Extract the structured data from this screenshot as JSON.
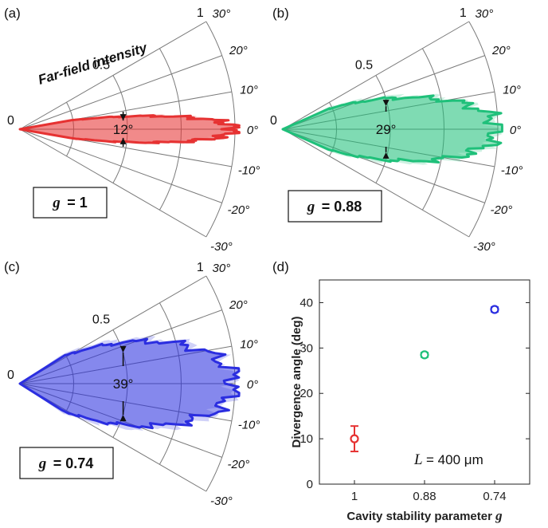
{
  "panels": [
    {
      "label": "(a)",
      "title": "Far-field intensity",
      "color": "#e63232",
      "g_symbol": "g",
      "g_value": "= 1",
      "angle_label": "12°",
      "divergence_deg": 12,
      "r_ticks": [
        "0",
        "0.5",
        "1"
      ],
      "angle_ticks": [
        "30°",
        "20°",
        "10°",
        "0°",
        "-10°",
        "-20°",
        "-30°"
      ]
    },
    {
      "label": "(b)",
      "title": "",
      "color": "#1fc07a",
      "g_symbol": "g",
      "g_value": "= 0.88",
      "angle_label": "29°",
      "divergence_deg": 29,
      "r_ticks": [
        "0",
        "0.5",
        "1"
      ],
      "angle_ticks": [
        "30°",
        "20°",
        "10°",
        "0°",
        "-10°",
        "-20°",
        "-30°"
      ]
    },
    {
      "label": "(c)",
      "title": "",
      "color": "#2b2ee0",
      "g_symbol": "g",
      "g_value": "= 0.74",
      "angle_label": "39°",
      "divergence_deg": 39,
      "r_ticks": [
        "0",
        "0.5",
        "1"
      ],
      "angle_ticks": [
        "30°",
        "20°",
        "10°",
        "0°",
        "-10°",
        "-20°",
        "-30°"
      ]
    }
  ],
  "chart_data": {
    "type": "scatter",
    "panel_label": "(d)",
    "categories": [
      "1",
      "0.88",
      "0.74"
    ],
    "values": [
      10,
      28.5,
      38.5
    ],
    "errors": [
      2.8,
      0.5,
      0.5
    ],
    "colors": [
      "#e63232",
      "#1fc07a",
      "#2b2ee0"
    ],
    "xlabel_prefix": "Cavity stability parameter ",
    "xlabel_symbol": "g",
    "ylabel": "Divergence angle (deg)",
    "ylim": [
      0,
      45
    ],
    "yticks": [
      "0",
      "10",
      "20",
      "30",
      "40"
    ],
    "annotation_symbol": "L",
    "annotation_value": " = 400 μm"
  }
}
